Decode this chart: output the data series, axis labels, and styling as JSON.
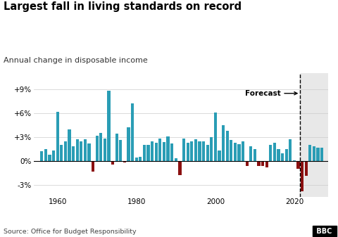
{
  "title": "Largest fall in living standards on record",
  "subtitle": "Annual change in disposable income",
  "source": "Source: Office for Budget Responsibility",
  "years": [
    1956,
    1957,
    1958,
    1959,
    1960,
    1961,
    1962,
    1963,
    1964,
    1965,
    1966,
    1967,
    1968,
    1969,
    1970,
    1971,
    1972,
    1973,
    1974,
    1975,
    1976,
    1977,
    1978,
    1979,
    1980,
    1981,
    1982,
    1983,
    1984,
    1985,
    1986,
    1987,
    1988,
    1989,
    1990,
    1991,
    1992,
    1993,
    1994,
    1995,
    1996,
    1997,
    1998,
    1999,
    2000,
    2001,
    2002,
    2003,
    2004,
    2005,
    2006,
    2007,
    2008,
    2009,
    2010,
    2011,
    2012,
    2013,
    2014,
    2015,
    2016,
    2017,
    2018,
    2019,
    2020,
    2021,
    2022,
    2023,
    2024,
    2025,
    2026,
    2027
  ],
  "values": [
    1.2,
    1.5,
    0.8,
    1.3,
    6.2,
    2.0,
    2.5,
    4.0,
    1.8,
    2.7,
    2.5,
    2.7,
    2.2,
    -1.3,
    3.2,
    3.5,
    2.8,
    8.8,
    -0.5,
    3.4,
    2.6,
    -0.2,
    4.2,
    7.2,
    0.4,
    0.5,
    2.0,
    2.0,
    2.5,
    2.3,
    2.8,
    2.4,
    3.1,
    2.2,
    0.3,
    -1.8,
    2.8,
    2.3,
    2.5,
    2.7,
    2.5,
    2.5,
    2.0,
    3.0,
    6.1,
    1.3,
    4.5,
    3.8,
    2.6,
    2.3,
    2.1,
    2.5,
    -0.6,
    1.8,
    1.5,
    -0.6,
    -0.6,
    -0.8,
    2.0,
    2.3,
    1.5,
    1.0,
    1.5,
    2.7,
    0.1,
    -1.0,
    -3.8,
    -1.9,
    2.0,
    1.8,
    1.7,
    1.7
  ],
  "forecast_start_year": 2022,
  "teal_color": "#2a9db5",
  "red_color": "#8b1010",
  "forecast_bg": "#e8e8e8",
  "yticks": [
    -3,
    0,
    3,
    6,
    9
  ],
  "ylim": [
    -4.5,
    11.0
  ],
  "xlim": [
    1954,
    2028.5
  ]
}
